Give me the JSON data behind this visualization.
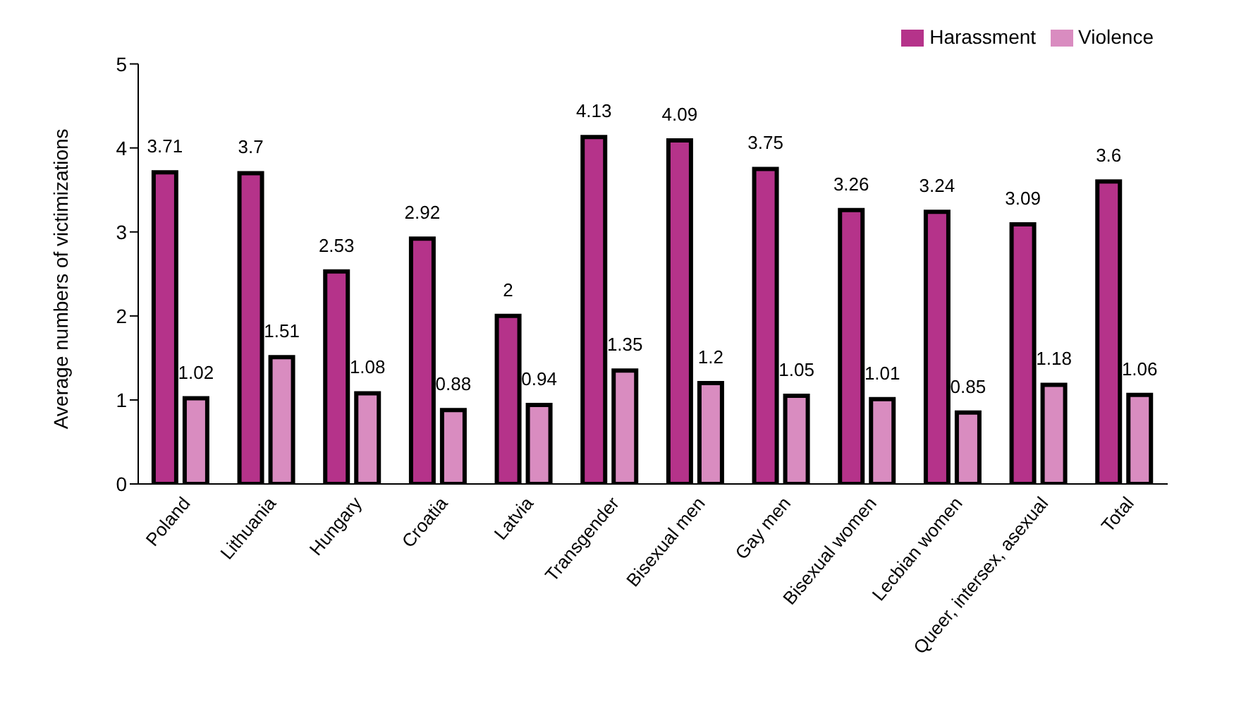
{
  "chart_data": {
    "type": "bar",
    "ylabel": "Average numbers of victimizations",
    "categories": [
      "Poland",
      "Lithuania",
      "Hungary",
      "Croatia",
      "Latvia",
      "Transgender",
      "Bisexual men",
      "Gay men",
      "Bisexual women",
      "Lecbian women",
      "Queer, intersex, asexual",
      "Total"
    ],
    "series": [
      {
        "name": "Harassment",
        "color": "#b5338a",
        "values": [
          3.71,
          3.7,
          2.53,
          2.92,
          2,
          4.13,
          4.09,
          3.75,
          3.26,
          3.24,
          3.09,
          3.6
        ]
      },
      {
        "name": "Violence",
        "color": "#d98cc0",
        "values": [
          1.02,
          1.51,
          1.08,
          0.88,
          0.94,
          1.35,
          1.2,
          1.05,
          1.01,
          0.85,
          1.18,
          1.06
        ]
      }
    ],
    "ylim": [
      0,
      5
    ],
    "yticks": [
      0,
      1,
      2,
      3,
      4,
      5
    ],
    "grid": false,
    "legend": "top right",
    "data_labels": true
  }
}
